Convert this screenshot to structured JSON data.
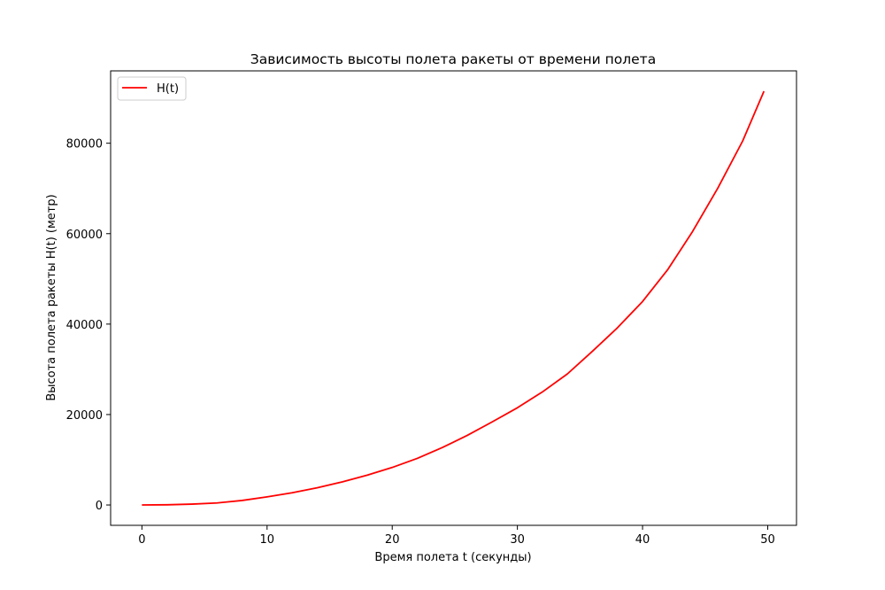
{
  "chart_data": {
    "type": "line",
    "title": "Зависимость высоты полета ракеты от времени полета",
    "xlabel": "Время полета t (секунды)",
    "ylabel": "Высота полета ракеты H(t) (метр)",
    "xlim": [
      -2.5,
      52.3
    ],
    "ylim": [
      -4500,
      96000
    ],
    "xticks": [
      0,
      10,
      20,
      30,
      40,
      50
    ],
    "yticks": [
      0,
      20000,
      40000,
      60000,
      80000
    ],
    "grid": false,
    "legend_position": "top-left",
    "series": [
      {
        "name": "H(t)",
        "color": "#ff0000",
        "x": [
          0,
          2,
          4,
          6,
          8,
          10,
          12,
          14,
          16,
          18,
          20,
          22,
          24,
          26,
          28,
          30,
          32,
          34,
          36,
          38,
          40,
          42,
          44,
          46,
          48,
          49.7
        ],
        "y": [
          0,
          44,
          190,
          450,
          1000,
          1800,
          2700,
          3800,
          5100,
          6600,
          8300,
          10300,
          12700,
          15400,
          18400,
          21500,
          25000,
          29000,
          34000,
          39200,
          45000,
          52000,
          60500,
          70000,
          80500,
          91500
        ]
      }
    ]
  }
}
